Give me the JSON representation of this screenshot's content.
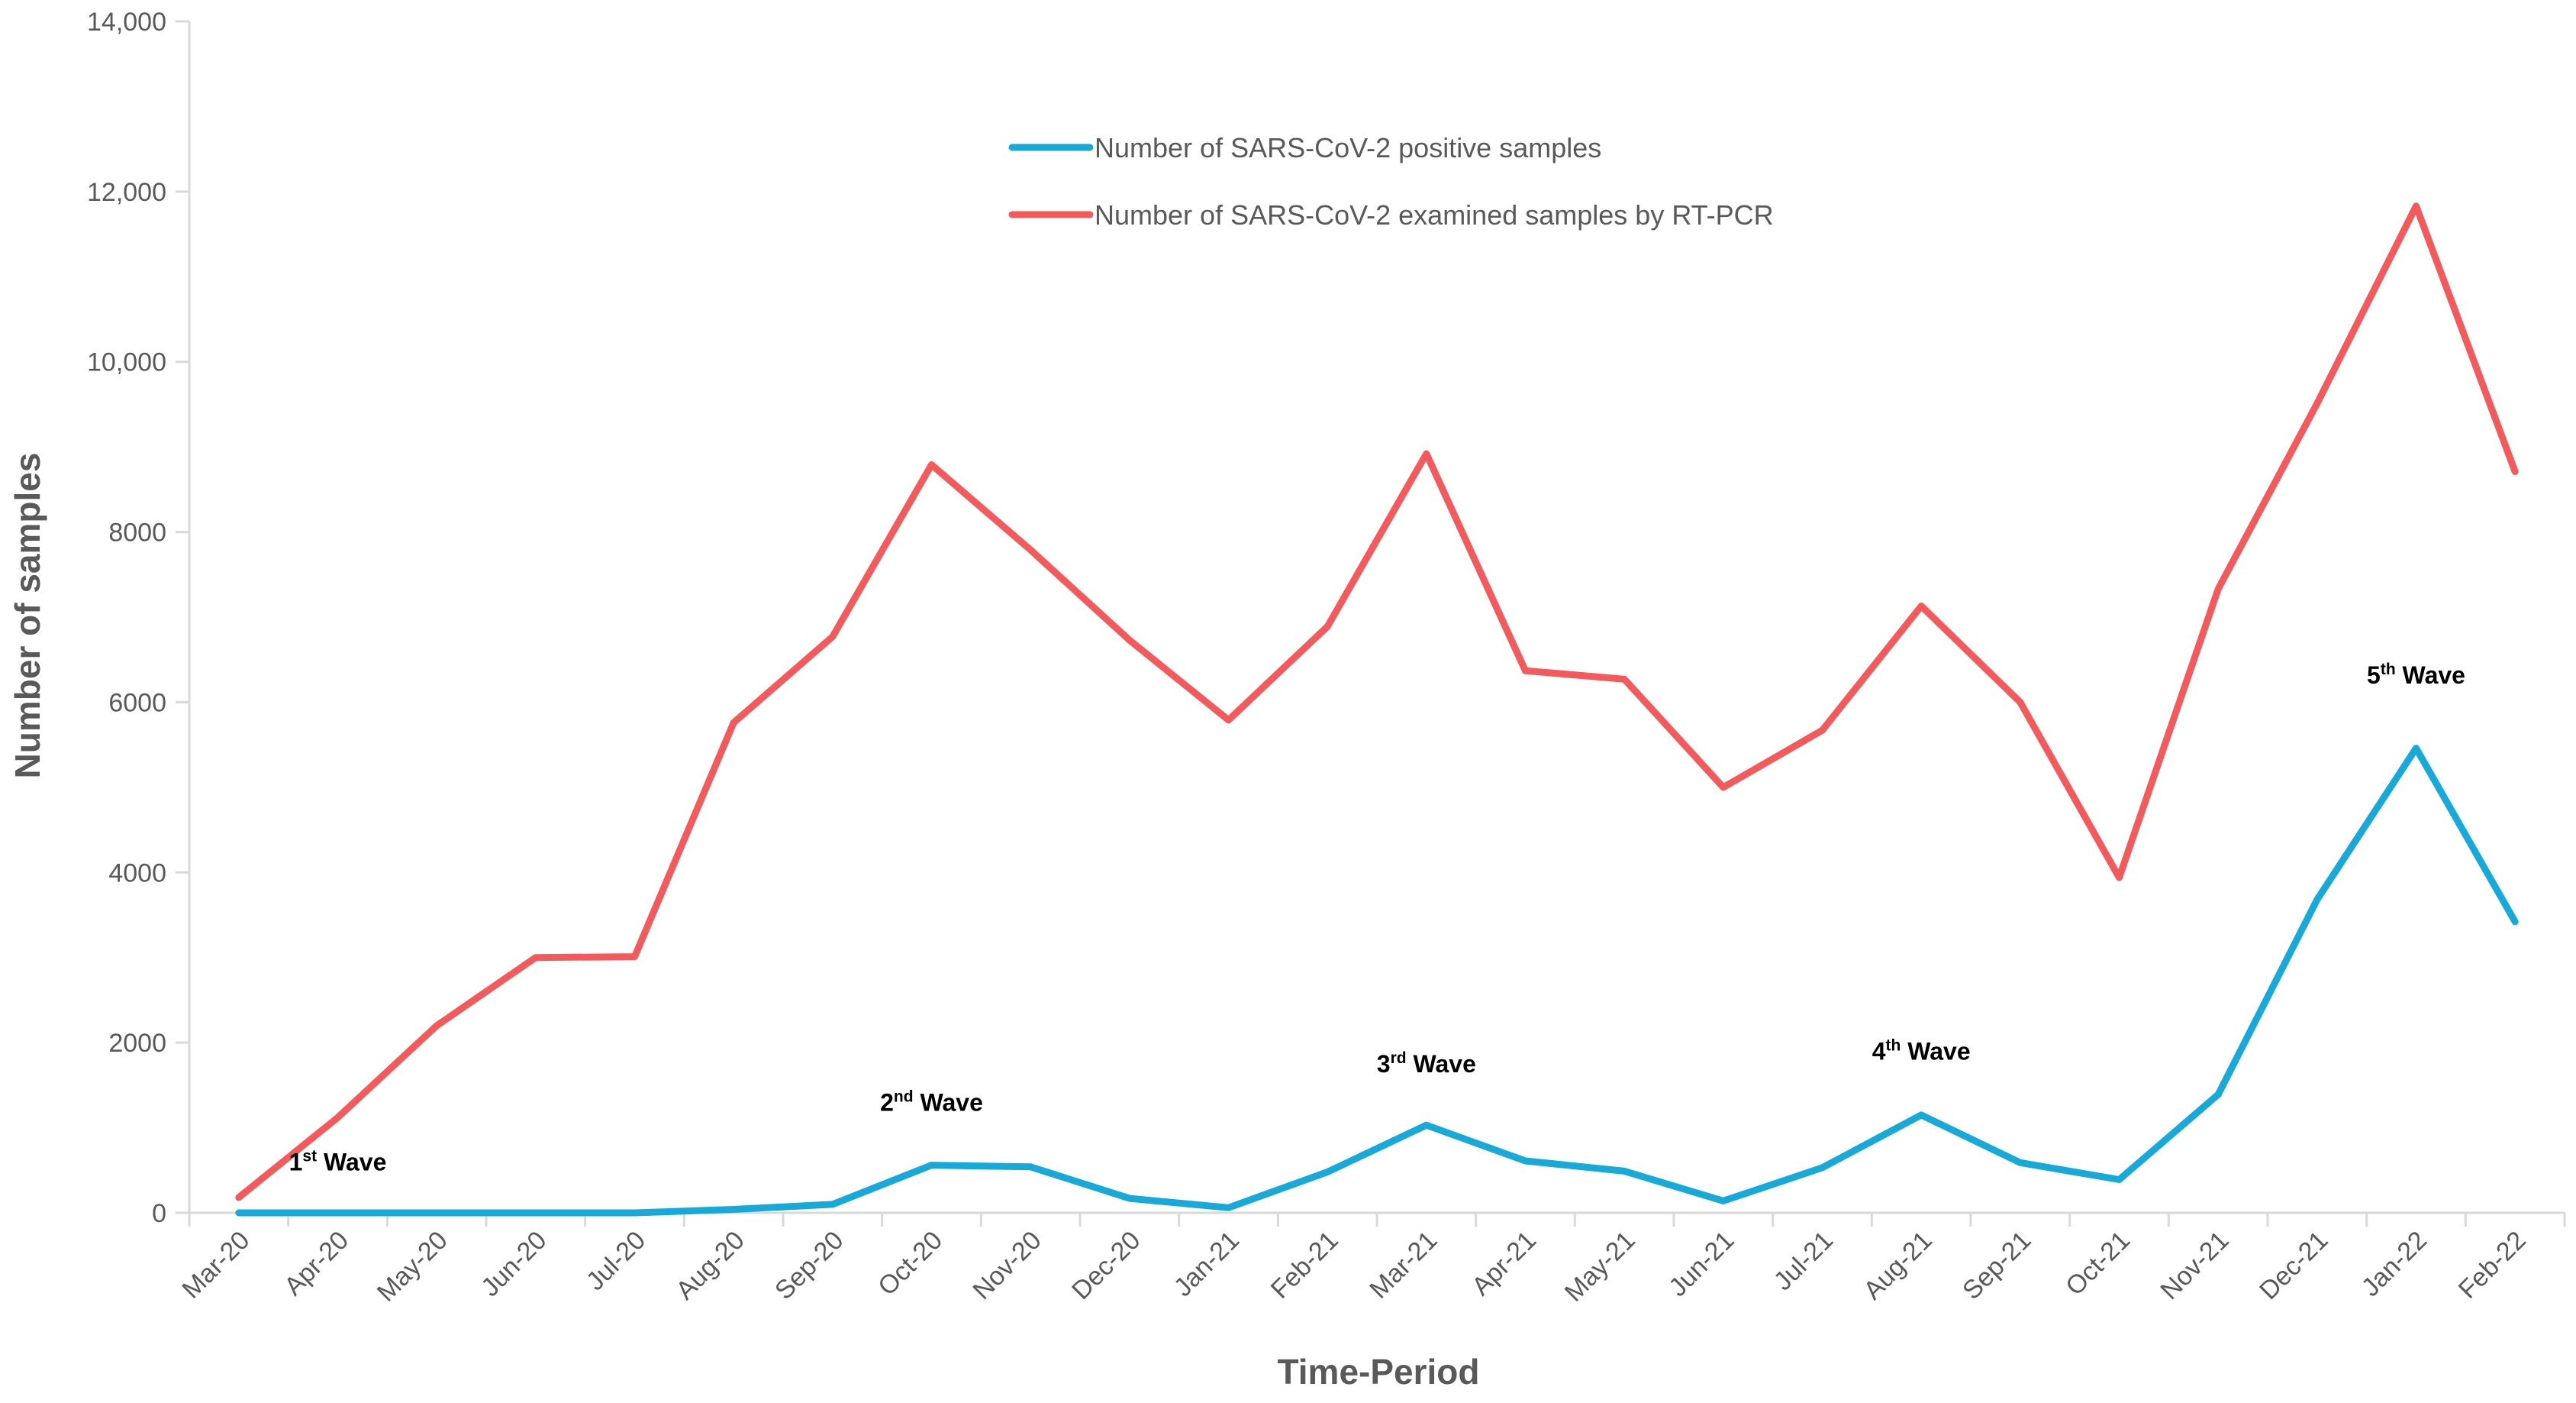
{
  "chart_data": {
    "type": "line",
    "title": "",
    "xlabel": "Time-Period",
    "ylabel": "Number of samples",
    "ylim": [
      0,
      14000
    ],
    "y_ticks": [
      {
        "value": 0,
        "label": "0"
      },
      {
        "value": 2000,
        "label": "2000"
      },
      {
        "value": 4000,
        "label": "4000"
      },
      {
        "value": 6000,
        "label": "6000"
      },
      {
        "value": 8000,
        "label": "8000"
      },
      {
        "value": 10000,
        "label": "10,000"
      },
      {
        "value": 12000,
        "label": "12,000"
      },
      {
        "value": 14000,
        "label": "14,000"
      }
    ],
    "grid": false,
    "legend_position": "top-center",
    "categories": [
      "Mar-20",
      "Apr-20",
      "May-20",
      "Jun-20",
      "Jul-20",
      "Aug-20",
      "Sep-20",
      "Oct-20",
      "Nov-20",
      "Dec-20",
      "Jan-21",
      "Feb-21",
      "Mar-21",
      "Apr-21",
      "May-21",
      "Jun-21",
      "Jul-21",
      "Aug-21",
      "Sep-21",
      "Oct-21",
      "Nov-21",
      "Dec-21",
      "Jan-22",
      "Feb-22"
    ],
    "series": [
      {
        "name": "Number of SARS-CoV-2 positive samples",
        "color": "#17A9D9",
        "values": [
          0,
          0,
          0,
          0,
          0,
          40,
          100,
          560,
          540,
          170,
          60,
          480,
          1030,
          610,
          490,
          140,
          530,
          1150,
          590,
          390,
          1390,
          3680,
          5460,
          3420
        ]
      },
      {
        "name": "Number of SARS-CoV-2 examined samples by RT-PCR",
        "color": "#F4595B",
        "values": [
          180,
          1120,
          2200,
          3000,
          3010,
          5760,
          6770,
          8790,
          7790,
          6730,
          5790,
          6890,
          8920,
          6370,
          6270,
          5000,
          5670,
          7130,
          6000,
          3940,
          7330,
          9510,
          11830,
          8710
        ]
      }
    ],
    "annotations": [
      {
        "category": "Apr-20",
        "y": 500,
        "ordinal": "1",
        "suffix": "st",
        "text": "Wave"
      },
      {
        "category": "Oct-20",
        "y": 1200,
        "ordinal": "2",
        "suffix": "nd",
        "text": "Wave"
      },
      {
        "category": "Mar-21",
        "y": 1650,
        "ordinal": "3",
        "suffix": "rd",
        "text": "Wave"
      },
      {
        "category": "Aug-21",
        "y": 1800,
        "ordinal": "4",
        "suffix": "th",
        "text": "Wave"
      },
      {
        "category": "Jan-22",
        "y": 6220,
        "ordinal": "5",
        "suffix": "th",
        "text": "Wave"
      }
    ]
  }
}
